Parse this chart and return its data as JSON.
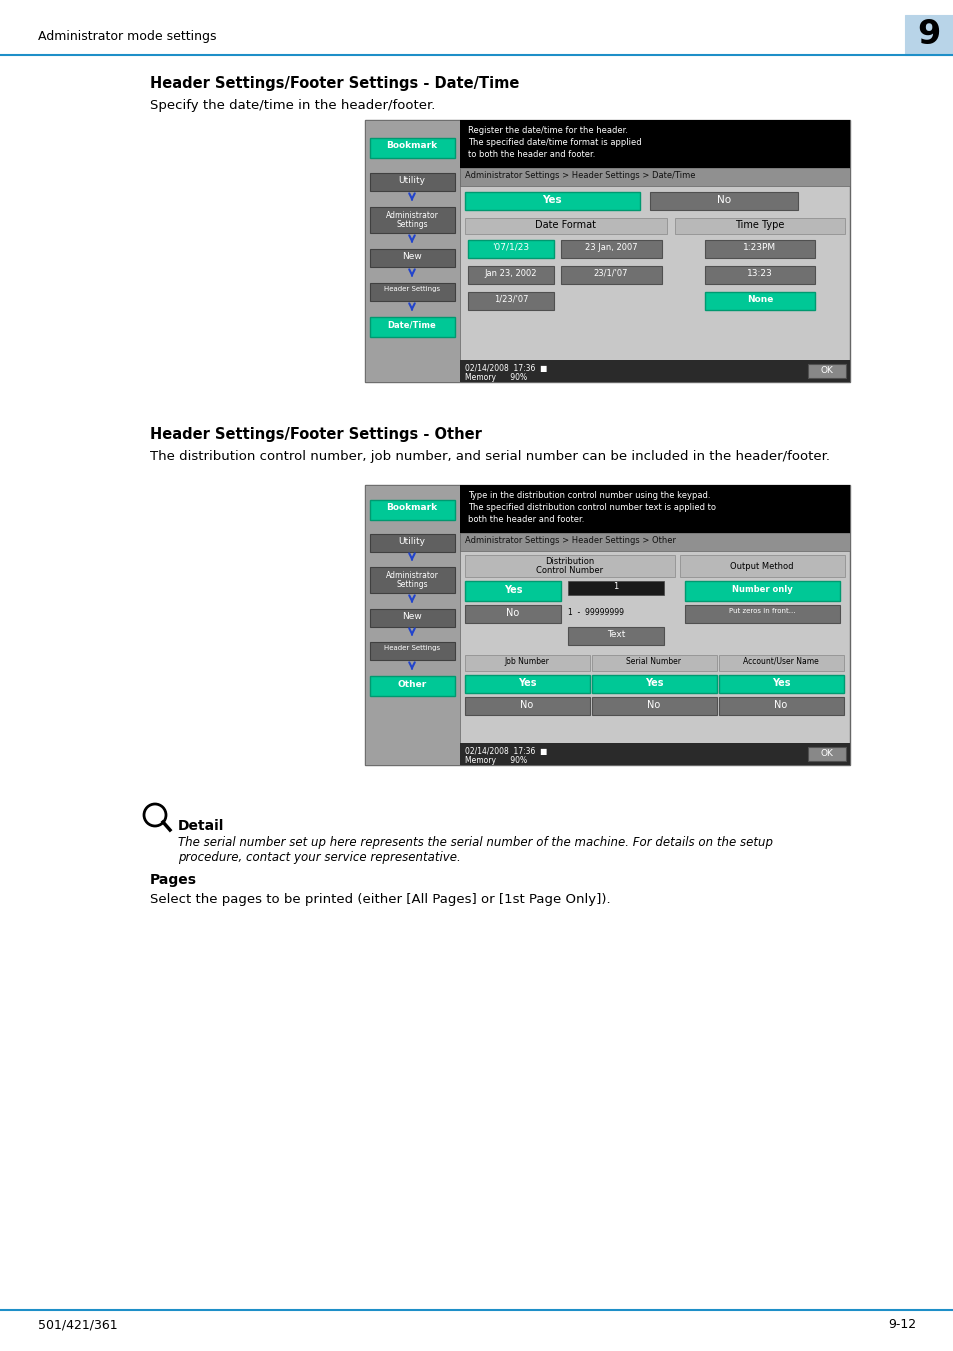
{
  "page_header_text": "Administrator mode settings",
  "page_number": "9",
  "page_footer_left": "501/421/361",
  "page_footer_right": "9-12",
  "section1_title": "Header Settings/Footer Settings - Date/Time",
  "section1_body": "Specify the date/time in the header/footer.",
  "section2_title": "Header Settings/Footer Settings - Other",
  "section2_body": "The distribution control number, job number, and serial number can be included in the header/footer.",
  "detail_title": "Detail",
  "detail_body_line1": "The serial number set up here represents the serial number of the machine. For details on the setup",
  "detail_body_line2": "procedure, contact your service representative.",
  "pages_title": "Pages",
  "pages_body": "Select the pages to be printed (either [All Pages] or [1st Page Only]).",
  "header_bg_color": "#b8d4e8",
  "blue_line_color": "#1e8fc8",
  "teal_btn_color": "#00c896",
  "dark_btn_color": "#707070",
  "med_btn_color": "#888888",
  "screen_bg": "#c8c8c8",
  "screen_mid_bg": "#a0a0a0",
  "screen_black_bg": "#000000",
  "breadcrumb_bg": "#909090",
  "white": "#ffffff",
  "black": "#000000",
  "sidebar_bg": "#a0a0a0",
  "sidebar_dark": "#606060",
  "note_icon_color": "#000000"
}
